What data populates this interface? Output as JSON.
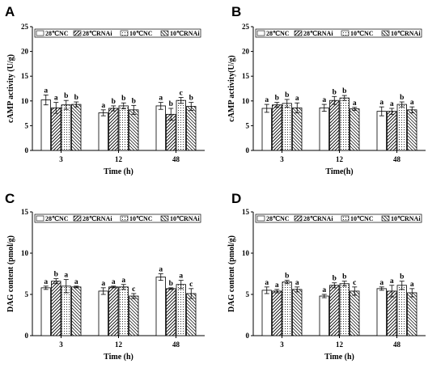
{
  "figure": {
    "legend_entries": [
      "28℃NC",
      "28℃RNAi",
      "10℃NC",
      "10℃RNAi"
    ],
    "series_patterns": [
      "plain",
      "hatch-up",
      "dots",
      "hatch-down"
    ]
  },
  "chart_data": [
    {
      "panel": "A",
      "type": "bar",
      "xlabel": "Time (h)",
      "ylabel": "cAMP activity (U/g)",
      "ylim": [
        0,
        25
      ],
      "yticks": [
        0,
        5,
        10,
        15,
        20,
        25
      ],
      "categories": [
        "3",
        "12",
        "48"
      ],
      "legend": "top-left",
      "series": [
        {
          "name": "28℃NC",
          "values": [
            10.2,
            7.6,
            9.0
          ],
          "errors": [
            1.0,
            0.6,
            0.7
          ],
          "labels": [
            "a",
            "a",
            "a"
          ]
        },
        {
          "name": "28℃RNAi",
          "values": [
            8.6,
            8.5,
            7.3
          ],
          "errors": [
            1.1,
            0.5,
            1.2
          ],
          "labels": [
            "a",
            "b",
            "b"
          ]
        },
        {
          "name": "10℃NC",
          "values": [
            9.2,
            9.0,
            10.1
          ],
          "errors": [
            0.9,
            0.6,
            0.6
          ],
          "labels": [
            "b",
            "b",
            "c"
          ]
        },
        {
          "name": "10℃RNAi",
          "values": [
            9.3,
            8.2,
            8.9
          ],
          "errors": [
            0.5,
            0.9,
            0.8
          ],
          "labels": [
            "b",
            "b",
            "b"
          ]
        }
      ]
    },
    {
      "panel": "B",
      "type": "bar",
      "xlabel": "Time(h)",
      "ylabel": "cAMP activity(U/g)",
      "ylim": [
        0,
        25
      ],
      "yticks": [
        0,
        5,
        10,
        15,
        20,
        25
      ],
      "categories": [
        "3",
        "12",
        "48"
      ],
      "legend": "top-left",
      "series": [
        {
          "name": "28℃NC",
          "values": [
            8.5,
            8.6,
            7.9
          ],
          "errors": [
            0.8,
            0.7,
            0.9
          ],
          "labels": [
            "a",
            "a",
            "a"
          ]
        },
        {
          "name": "28℃RNAi",
          "values": [
            9.2,
            10.1,
            7.9
          ],
          "errors": [
            0.5,
            0.8,
            0.6
          ],
          "labels": [
            "b",
            "b",
            "a"
          ]
        },
        {
          "name": "10℃NC",
          "values": [
            9.5,
            10.6,
            9.3
          ],
          "errors": [
            0.8,
            0.5,
            0.5
          ],
          "labels": [
            "b",
            "b",
            "b"
          ]
        },
        {
          "name": "10℃RNAi",
          "values": [
            8.6,
            8.4,
            8.2
          ],
          "errors": [
            1.0,
            0.3,
            0.6
          ],
          "labels": [
            "a",
            "a",
            "a"
          ]
        }
      ]
    },
    {
      "panel": "C",
      "type": "bar",
      "xlabel": "Time (h)",
      "ylabel": "DAG content (pmol/g)",
      "ylim": [
        0,
        15
      ],
      "yticks": [
        0,
        5,
        10,
        15
      ],
      "categories": [
        "3",
        "12",
        "48"
      ],
      "legend": "top-left",
      "series": [
        {
          "name": "28℃NC",
          "values": [
            5.8,
            5.4,
            7.1
          ],
          "errors": [
            0.2,
            0.4,
            0.4
          ],
          "labels": [
            "a",
            "a",
            "a"
          ]
        },
        {
          "name": "28℃RNAi",
          "values": [
            6.6,
            5.9,
            5.7
          ],
          "errors": [
            0.3,
            0.1,
            0.1
          ],
          "labels": [
            "b",
            "a",
            "b"
          ]
        },
        {
          "name": "10℃NC",
          "values": [
            6.0,
            5.9,
            6.2
          ],
          "errors": [
            0.8,
            0.3,
            0.5
          ],
          "labels": [
            "a",
            "a",
            "a"
          ]
        },
        {
          "name": "10℃RNAi",
          "values": [
            5.9,
            4.8,
            5.1
          ],
          "errors": [
            0.1,
            0.3,
            0.6
          ],
          "labels": [
            "a",
            "c",
            "c"
          ]
        }
      ]
    },
    {
      "panel": "D",
      "type": "bar",
      "xlabel": "Time (h)",
      "ylabel": "DAG content (pmol/g)",
      "ylim": [
        0,
        15
      ],
      "yticks": [
        0,
        5,
        10,
        15
      ],
      "categories": [
        "3",
        "12",
        "48"
      ],
      "legend": "top-left",
      "series": [
        {
          "name": "28℃NC",
          "values": [
            5.5,
            4.8,
            5.7
          ],
          "errors": [
            0.4,
            0.2,
            0.2
          ],
          "labels": [
            "a",
            "a",
            "a"
          ]
        },
        {
          "name": "28℃RNAi",
          "values": [
            5.4,
            6.1,
            5.4
          ],
          "errors": [
            0.2,
            0.3,
            0.7
          ],
          "labels": [
            "a",
            "b",
            "a"
          ]
        },
        {
          "name": "10℃NC",
          "values": [
            6.5,
            6.3,
            6.1
          ],
          "errors": [
            0.2,
            0.3,
            0.5
          ],
          "labels": [
            "b",
            "b",
            "b"
          ]
        },
        {
          "name": "10℃RNAi",
          "values": [
            5.6,
            5.4,
            5.2
          ],
          "errors": [
            0.3,
            0.5,
            0.5
          ],
          "labels": [
            "a",
            "c",
            "a"
          ]
        }
      ]
    }
  ]
}
